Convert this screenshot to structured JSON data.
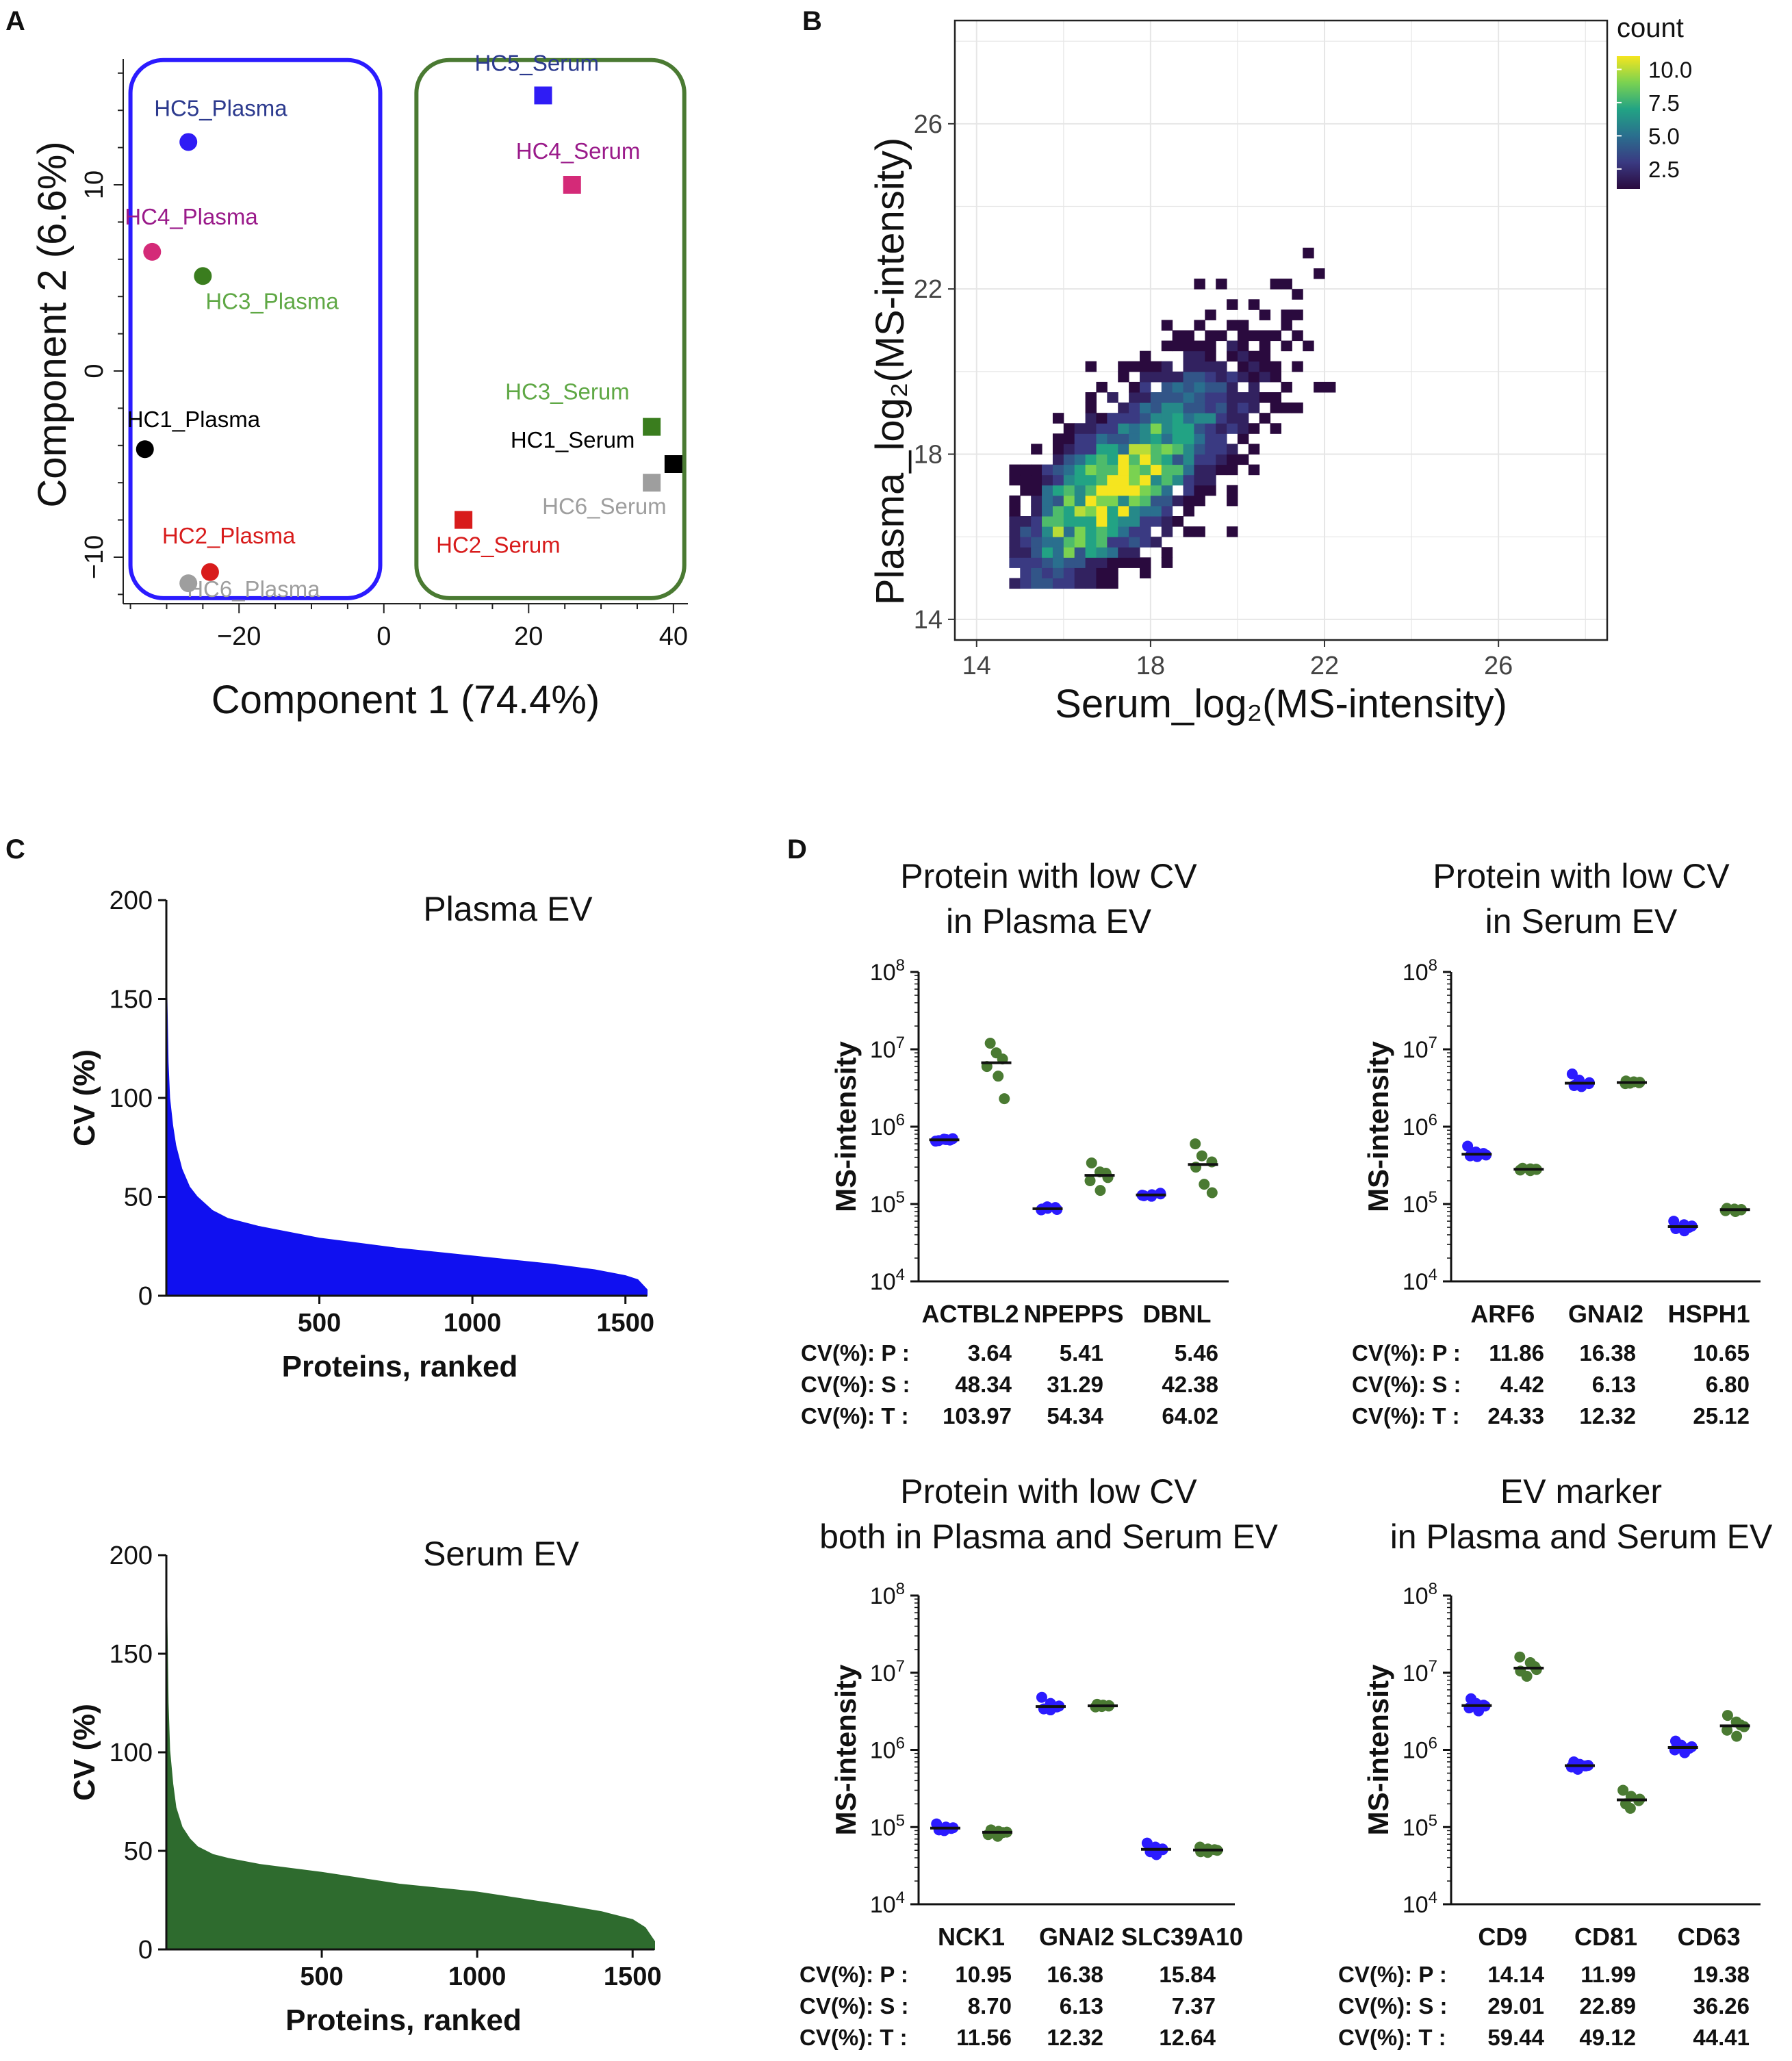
{
  "figure": {
    "panel_labels": [
      "A",
      "B",
      "C",
      "D"
    ]
  },
  "chart_data": [
    {
      "panel": "A",
      "type": "scatter",
      "xlabel": "Component 1 (74.4%)",
      "ylabel": "Component 2 (6.6%)",
      "xlim": [
        -36,
        42
      ],
      "ylim": [
        -12.5,
        17.5
      ],
      "xticks": [
        -20,
        0,
        20,
        40
      ],
      "yticks": [
        -10,
        0,
        10
      ],
      "group_colors": {
        "Plasma": "#2b1bff",
        "Serum": "#4a7a32"
      },
      "points": [
        {
          "label": "HC5_Plasma",
          "x": -27,
          "y": 12.3,
          "shape": "circle",
          "color": "#2f1cf5",
          "label_color": "#2c3a8e"
        },
        {
          "label": "HC4_Plasma",
          "x": -32,
          "y": 6.4,
          "shape": "circle",
          "color": "#d42a78",
          "label_color": "#9a1a8a"
        },
        {
          "label": "HC3_Plasma",
          "x": -25,
          "y": 5.1,
          "shape": "circle",
          "color": "#3a7d1e",
          "label_color": "#5fa845"
        },
        {
          "label": "HC1_Plasma",
          "x": -33,
          "y": -4.2,
          "shape": "circle",
          "color": "#000000",
          "label_color": "#000000"
        },
        {
          "label": "HC2_Plasma",
          "x": -24,
          "y": -10.8,
          "shape": "circle",
          "color": "#d81c1c",
          "label_color": "#d81c1c"
        },
        {
          "label": "HC6_Plasma",
          "x": -27,
          "y": -11.4,
          "shape": "circle",
          "color": "#9e9e9e",
          "label_color": "#9e9e9e"
        },
        {
          "label": "HC5_Serum",
          "x": 22,
          "y": 14.8,
          "shape": "square",
          "color": "#2f1cf5",
          "label_color": "#2c3a8e"
        },
        {
          "label": "HC4_Serum",
          "x": 26,
          "y": 10,
          "shape": "square",
          "color": "#d42a78",
          "label_color": "#9a1a8a"
        },
        {
          "label": "HC3_Serum",
          "x": 37,
          "y": -3,
          "shape": "square",
          "color": "#3a7d1e",
          "label_color": "#5fa845"
        },
        {
          "label": "HC1_Serum",
          "x": 40,
          "y": -5,
          "shape": "square",
          "color": "#000000",
          "label_color": "#000000"
        },
        {
          "label": "HC6_Serum",
          "x": 37,
          "y": -6,
          "shape": "square",
          "color": "#9e9e9e",
          "label_color": "#9e9e9e"
        },
        {
          "label": "HC2_Serum",
          "x": 11,
          "y": -8,
          "shape": "square",
          "color": "#d81c1c",
          "label_color": "#d81c1c"
        }
      ]
    },
    {
      "panel": "B",
      "type": "heatmap",
      "xlabel": "Serum_log₂(MS-intensity)",
      "ylabel": "Plasma_log₂(MS-intensity)",
      "xlim": [
        13.5,
        28.5
      ],
      "ylim": [
        13.5,
        28.5
      ],
      "xticks": [
        14,
        18,
        22,
        26
      ],
      "yticks": [
        14,
        18,
        22,
        26
      ],
      "legend": {
        "title": "count",
        "ticks": [
          "10.0",
          "7.5",
          "5.0",
          "2.5"
        ],
        "min": 1,
        "max": 11
      },
      "bin_width": 0.25,
      "density": {
        "center_x": 17,
        "center_y": 17,
        "cov_xx": 2.9,
        "cov_xy": 2.3,
        "cov_yy": 3.1,
        "peak_count": 11
      },
      "colormap": [
        "#2a0a3e",
        "#3a3a82",
        "#2a6f8e",
        "#22a384",
        "#7ad251",
        "#f5e51f"
      ]
    },
    {
      "panel": "C",
      "type": "area",
      "title": "Plasma EV",
      "xlabel": "Proteins, ranked",
      "ylabel": "CV (%)",
      "xlim": [
        0,
        1570
      ],
      "ylim": [
        0,
        200
      ],
      "xticks": [
        500,
        1000,
        1500
      ],
      "yticks": [
        0,
        50,
        100,
        150,
        200
      ],
      "fill": "#1010f0",
      "x": [
        1,
        5,
        10,
        20,
        30,
        50,
        75,
        100,
        150,
        200,
        300,
        500,
        750,
        1000,
        1250,
        1400,
        1500,
        1540,
        1570
      ],
      "values": [
        152,
        118,
        100,
        86,
        76,
        64,
        55,
        50,
        43,
        39,
        35,
        29,
        24,
        20,
        16,
        13,
        10,
        8,
        3
      ]
    },
    {
      "panel": "C",
      "type": "area",
      "title": "Serum EV",
      "xlabel": "Proteins, ranked",
      "ylabel": "CV (%)",
      "xlim": [
        0,
        1570
      ],
      "ylim": [
        0,
        200
      ],
      "xticks": [
        500,
        1000,
        1500
      ],
      "yticks": [
        0,
        50,
        100,
        150,
        200
      ],
      "fill": "#2e6b2e",
      "x": [
        1,
        5,
        10,
        20,
        30,
        50,
        75,
        100,
        150,
        200,
        300,
        500,
        750,
        1000,
        1250,
        1400,
        1500,
        1540,
        1570
      ],
      "values": [
        170,
        125,
        101,
        84,
        72,
        62,
        56,
        52,
        48,
        46,
        43,
        39,
        33,
        29,
        23,
        19,
        15,
        11,
        4
      ]
    },
    {
      "panel": "D",
      "type": "scatter",
      "title": "Protein with low CV\nin Plasma EV",
      "ylabel": "MS-intensity",
      "yscale": "log",
      "ylim": [
        10000,
        100000000
      ],
      "categories": [
        "ACTBL2",
        "NPEPPS",
        "DBNL"
      ],
      "colors": {
        "Plasma": "#2b1bff",
        "Serum": "#4a7a32"
      },
      "series": [
        {
          "name": "Plasma",
          "values": [
            [
              660000,
              680000,
              700000,
              650000,
              690000,
              670000
            ],
            [
              84000,
              88000,
              90000,
              86000,
              92000,
              85000
            ],
            [
              128000,
              132000,
              135000,
              130000,
              126000,
              138000
            ]
          ]
        },
        {
          "name": "Serum",
          "values": [
            [
              12000000,
              9000000,
              7500000,
              6000000,
              4500000,
              2300000
            ],
            [
              340000,
              260000,
              220000,
              200000,
              150000,
              250000
            ],
            [
              600000,
              420000,
              350000,
              300000,
              180000,
              140000
            ]
          ]
        }
      ],
      "cv_rows": [
        {
          "label": "CV(%): P :",
          "values": [
            "3.64",
            "5.41",
            "5.46"
          ]
        },
        {
          "label": "CV(%): S :",
          "values": [
            "48.34",
            "31.29",
            "42.38"
          ]
        },
        {
          "label": "CV(%): T :",
          "values": [
            "103.97",
            "54.34",
            "64.02"
          ]
        }
      ]
    },
    {
      "panel": "D",
      "type": "scatter",
      "title": "Protein with low CV\nin Serum EV",
      "ylabel": "MS-intensity",
      "yscale": "log",
      "ylim": [
        10000,
        100000000
      ],
      "categories": [
        "ARF6",
        "GNAI2",
        "HSPH1"
      ],
      "colors": {
        "Plasma": "#2b1bff",
        "Serum": "#4a7a32"
      },
      "series": [
        {
          "name": "Plasma",
          "values": [
            [
              560000,
              470000,
              430000,
              420000,
              410000,
              450000
            ],
            [
              4800000,
              4000000,
              3600000,
              3400000,
              3300000,
              3700000
            ],
            [
              60000,
              54000,
              50000,
              48000,
              45000,
              52000
            ]
          ]
        },
        {
          "name": "Serum",
          "values": [
            [
              290000,
              285000,
              280000,
              275000,
              270000,
              282000
            ],
            [
              3900000,
              3800000,
              3700000,
              3600000,
              3650000,
              3750000
            ],
            [
              88000,
              86000,
              84000,
              82000,
              80000,
              85000
            ]
          ]
        }
      ],
      "cv_rows": [
        {
          "label": "CV(%): P :",
          "values": [
            "11.86",
            "16.38",
            "10.65"
          ]
        },
        {
          "label": "CV(%): S :",
          "values": [
            "4.42",
            "6.13",
            "6.80"
          ]
        },
        {
          "label": "CV(%): T :",
          "values": [
            "24.33",
            "12.32",
            "25.12"
          ]
        }
      ]
    },
    {
      "panel": "D",
      "type": "scatter",
      "title": "Protein with low CV\nboth in Plasma and Serum EV",
      "ylabel": "MS-intensity",
      "yscale": "log",
      "ylim": [
        10000,
        100000000
      ],
      "categories": [
        "NCK1",
        "GNAI2",
        "SLC39A10"
      ],
      "colors": {
        "Plasma": "#2b1bff",
        "Serum": "#4a7a32"
      },
      "series": [
        {
          "name": "Plasma",
          "values": [
            [
              110000,
              100000,
              96000,
              92000,
              90000,
              98000
            ],
            [
              4800000,
              4000000,
              3600000,
              3400000,
              3300000,
              3700000
            ],
            [
              62000,
              55000,
              51000,
              48000,
              44000,
              52000
            ]
          ]
        },
        {
          "name": "Serum",
          "values": [
            [
              92000,
              88000,
              85000,
              80000,
              76000,
              86000
            ],
            [
              3900000,
              3800000,
              3700000,
              3600000,
              3650000,
              3750000
            ],
            [
              55000,
              52000,
              50000,
              48000,
              47000,
              51000
            ]
          ]
        }
      ],
      "cv_rows": [
        {
          "label": "CV(%): P :",
          "values": [
            "10.95",
            "16.38",
            "15.84"
          ]
        },
        {
          "label": "CV(%): S :",
          "values": [
            "8.70",
            "6.13",
            "7.37"
          ]
        },
        {
          "label": "CV(%): T :",
          "values": [
            "11.56",
            "12.32",
            "12.64"
          ]
        }
      ]
    },
    {
      "panel": "D",
      "type": "scatter",
      "title": "EV marker\nin Plasma and Serum EV",
      "ylabel": "MS-intensity",
      "yscale": "log",
      "ylim": [
        10000,
        100000000
      ],
      "categories": [
        "CD9",
        "CD81",
        "CD63"
      ],
      "colors": {
        "Plasma": "#2b1bff",
        "Serum": "#4a7a32"
      },
      "series": [
        {
          "name": "Plasma",
          "values": [
            [
              4600000,
              4000000,
              3700000,
              3500000,
              3200000,
              3800000
            ],
            [
              700000,
              650000,
              620000,
              600000,
              560000,
              630000
            ],
            [
              1300000,
              1150000,
              1050000,
              1000000,
              920000,
              1100000
            ]
          ]
        },
        {
          "name": "Serum",
          "values": [
            [
              16000000,
              13500000,
              12000000,
              10500000,
              9000000,
              11000000
            ],
            [
              300000,
              250000,
              220000,
              200000,
              175000,
              230000
            ],
            [
              2800000,
              2300000,
              2000000,
              1800000,
              1500000,
              2100000
            ]
          ]
        }
      ],
      "cv_rows": [
        {
          "label": "CV(%): P :",
          "values": [
            "14.14",
            "11.99",
            "19.38"
          ]
        },
        {
          "label": "CV(%): S :",
          "values": [
            "29.01",
            "22.89",
            "36.26"
          ]
        },
        {
          "label": "CV(%): T :",
          "values": [
            "59.44",
            "49.12",
            "44.41"
          ]
        }
      ]
    }
  ]
}
